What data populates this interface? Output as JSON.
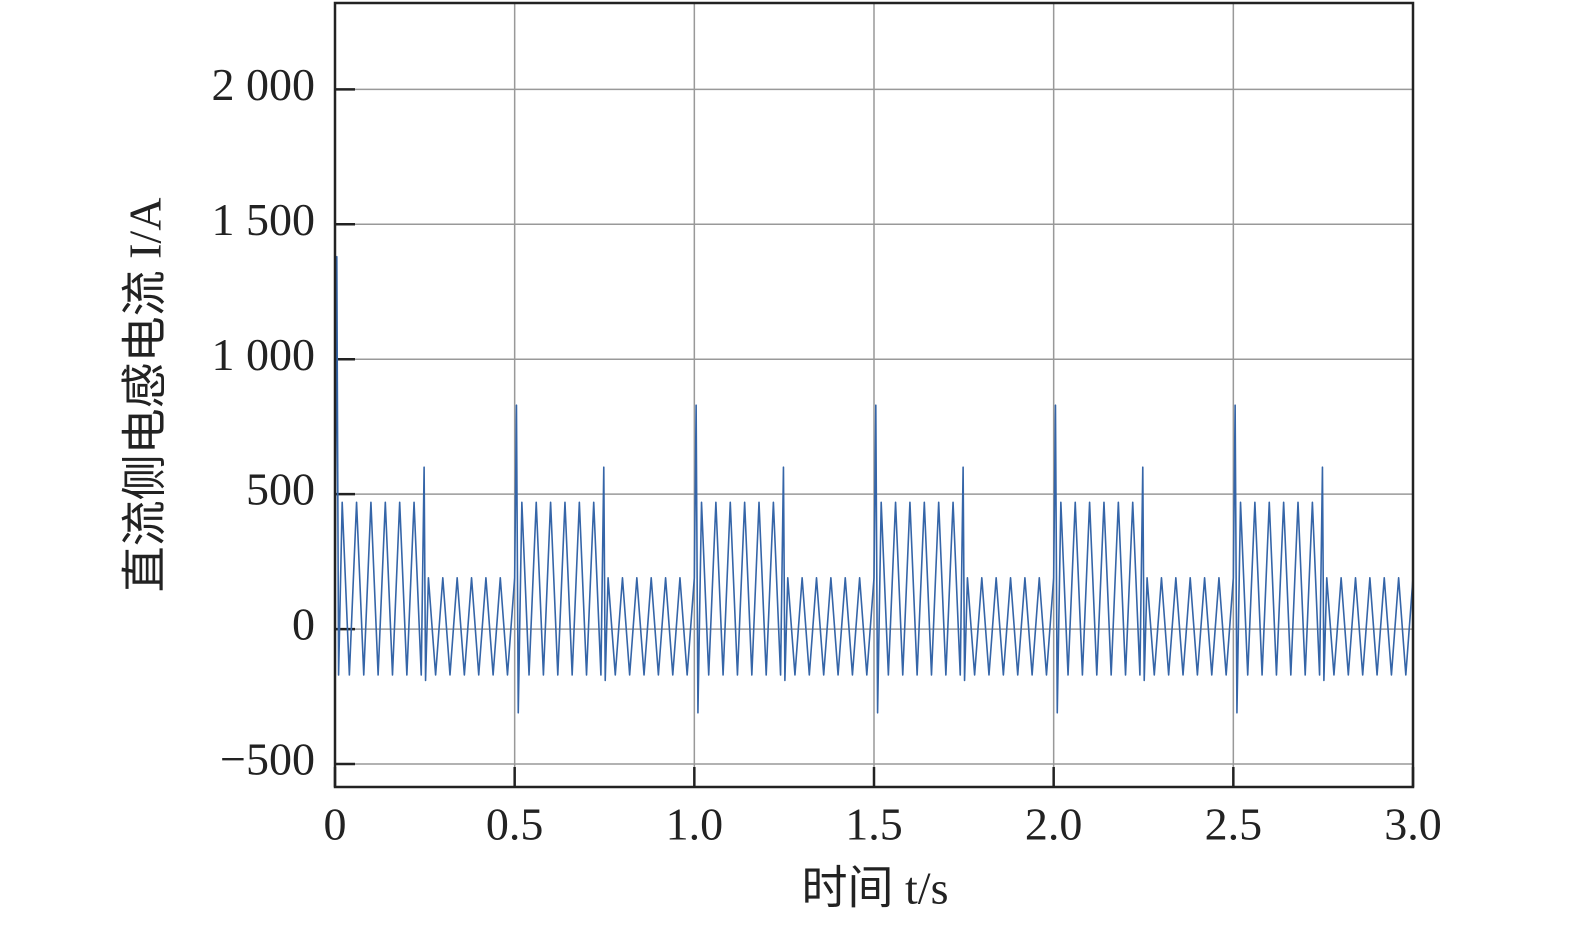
{
  "chart_data": {
    "type": "line",
    "xlabel": "时间 t/s",
    "ylabel": "直流侧电感电流 I/A",
    "xlim": [
      0,
      3
    ],
    "ylim": [
      -585,
      2320
    ],
    "xticks": [
      0,
      0.5,
      {
        "value": 1,
        "label": "1.0"
      },
      1.5,
      {
        "value": 2,
        "label": "2.0"
      },
      2.5,
      {
        "value": 3,
        "label": "3.0"
      }
    ],
    "yticks": [
      {
        "value": -500,
        "label": "−500"
      },
      0,
      500,
      {
        "value": 1000,
        "label": "1 000"
      },
      {
        "value": 1500,
        "label": "1 500"
      },
      {
        "value": 2000,
        "label": "2 000"
      }
    ],
    "grid": true,
    "series": [
      {
        "color": "#3565a8",
        "x": [
          0,
          0.005,
          0.01,
          0.02,
          0.04,
          0.06,
          0.08,
          0.1,
          0.12,
          0.14,
          0.16,
          0.18,
          0.2,
          0.22,
          0.24,
          0.248,
          0.252,
          0.26,
          0.28,
          0.3,
          0.32,
          0.34,
          0.36,
          0.38,
          0.4,
          0.42,
          0.44,
          0.46,
          0.48,
          0.5,
          0.505,
          0.51,
          0.52,
          0.54,
          0.56,
          0.58,
          0.6,
          0.62,
          0.64,
          0.66,
          0.68,
          0.7,
          0.72,
          0.74,
          0.748,
          0.752,
          0.76,
          0.78,
          0.8,
          0.82,
          0.84,
          0.86,
          0.88,
          0.9,
          0.92,
          0.94,
          0.96,
          0.98,
          1.0,
          1.005,
          1.01,
          1.02,
          1.04,
          1.06,
          1.08,
          1.1,
          1.12,
          1.14,
          1.16,
          1.18,
          1.2,
          1.22,
          1.24,
          1.248,
          1.252,
          1.26,
          1.28,
          1.3,
          1.32,
          1.34,
          1.36,
          1.38,
          1.4,
          1.42,
          1.44,
          1.46,
          1.48,
          1.5,
          1.505,
          1.51,
          1.52,
          1.54,
          1.56,
          1.58,
          1.6,
          1.62,
          1.64,
          1.66,
          1.68,
          1.7,
          1.72,
          1.74,
          1.748,
          1.752,
          1.76,
          1.78,
          1.8,
          1.82,
          1.84,
          1.86,
          1.88,
          1.9,
          1.92,
          1.94,
          1.96,
          1.98,
          2.0,
          2.005,
          2.01,
          2.02,
          2.04,
          2.06,
          2.08,
          2.1,
          2.12,
          2.14,
          2.16,
          2.18,
          2.2,
          2.22,
          2.24,
          2.248,
          2.252,
          2.26,
          2.28,
          2.3,
          2.32,
          2.34,
          2.36,
          2.38,
          2.4,
          2.42,
          2.44,
          2.46,
          2.48,
          2.5,
          2.505,
          2.51,
          2.52,
          2.54,
          2.56,
          2.58,
          2.6,
          2.62,
          2.64,
          2.66,
          2.68,
          2.7,
          2.72,
          2.74,
          2.748,
          2.752,
          2.76,
          2.78,
          2.8,
          2.82,
          2.84,
          2.86,
          2.88,
          2.9,
          2.92,
          2.94,
          2.96,
          2.98,
          3.0
        ],
        "values": [
          0,
          1380,
          -170,
          470,
          -170,
          470,
          -170,
          470,
          -170,
          470,
          -170,
          470,
          -170,
          470,
          -170,
          600,
          -190,
          190,
          -170,
          190,
          -170,
          190,
          -170,
          190,
          -170,
          190,
          -170,
          190,
          -170,
          190,
          830,
          -310,
          470,
          -170,
          470,
          -170,
          470,
          -170,
          470,
          -170,
          470,
          -170,
          470,
          -170,
          600,
          -190,
          190,
          -170,
          190,
          -170,
          190,
          -170,
          190,
          -170,
          190,
          -170,
          190,
          -170,
          190,
          830,
          -310,
          470,
          -170,
          470,
          -170,
          470,
          -170,
          470,
          -170,
          470,
          -170,
          470,
          -170,
          600,
          -190,
          190,
          -170,
          190,
          -170,
          190,
          -170,
          190,
          -170,
          190,
          -170,
          190,
          -170,
          190,
          830,
          -310,
          470,
          -170,
          470,
          -170,
          470,
          -170,
          470,
          -170,
          470,
          -170,
          470,
          -170,
          600,
          -190,
          190,
          -170,
          190,
          -170,
          190,
          -170,
          190,
          -170,
          190,
          -170,
          190,
          -170,
          190,
          830,
          -310,
          470,
          -170,
          470,
          -170,
          470,
          -170,
          470,
          -170,
          470,
          -170,
          470,
          -170,
          600,
          -190,
          190,
          -170,
          190,
          -170,
          190,
          -170,
          190,
          -170,
          190,
          -170,
          190,
          -170,
          190,
          830,
          -310,
          470,
          -170,
          470,
          -170,
          470,
          -170,
          470,
          -170,
          470,
          -170,
          470,
          -170,
          600,
          -190,
          190,
          -170,
          190,
          -170,
          190,
          -170,
          190,
          -170,
          190,
          -170,
          190,
          -170,
          190
        ]
      }
    ]
  }
}
